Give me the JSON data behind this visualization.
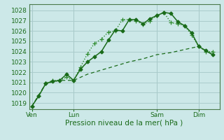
{
  "xlabel": "Pression niveau de la mer( hPa )",
  "background_color": "#cce8e8",
  "grid_color": "#aacccc",
  "line_color_dark": "#1a6b1a",
  "line_color_med": "#2d8b2d",
  "yticks": [
    1019,
    1020,
    1021,
    1022,
    1023,
    1024,
    1025,
    1026,
    1027,
    1028
  ],
  "ylim": [
    1018.4,
    1028.6
  ],
  "xtick_labels": [
    "Ven",
    "Lun",
    "Sam",
    "Dim"
  ],
  "xtick_positions": [
    0,
    3,
    9,
    12
  ],
  "xlim": [
    -0.2,
    13.5
  ],
  "series1_x": [
    0,
    0.5,
    1,
    1.5,
    2,
    2.5,
    3,
    3.5,
    4,
    4.5,
    5,
    5.5,
    6,
    6.5,
    7,
    7.5,
    8,
    8.5,
    9,
    9.5,
    10,
    10.5,
    11,
    11.5,
    12,
    12.5,
    13
  ],
  "series1_y": [
    1018.7,
    1019.7,
    1020.9,
    1021.1,
    1021.2,
    1021.8,
    1021.2,
    1022.3,
    1023.0,
    1023.5,
    1024.0,
    1025.1,
    1026.1,
    1026.0,
    1027.1,
    1027.1,
    1026.7,
    1027.2,
    1027.5,
    1027.8,
    1027.7,
    1026.9,
    1026.5,
    1025.8,
    1024.5,
    1024.1,
    1023.7
  ],
  "series2_x": [
    0,
    0.5,
    1,
    1.5,
    2,
    2.5,
    3,
    3.5,
    4,
    4.5,
    5,
    5.5,
    6,
    6.5,
    7,
    7.5,
    8,
    8.5,
    9,
    9.5,
    10,
    10.5,
    11,
    11.5,
    12,
    12.5,
    13
  ],
  "series2_y": [
    1018.7,
    1019.7,
    1020.9,
    1021.2,
    1021.2,
    1021.5,
    1021.2,
    1022.5,
    1023.8,
    1024.8,
    1025.2,
    1025.9,
    1026.0,
    1027.1,
    1027.1,
    1027.0,
    1026.6,
    1027.0,
    1027.5,
    1027.8,
    1026.8,
    1026.7,
    1026.5,
    1025.6,
    1024.5,
    1024.0,
    1024.0
  ],
  "series3_x": [
    0,
    1,
    2,
    3,
    4,
    5,
    6,
    7,
    8,
    9,
    10,
    11,
    12,
    13
  ],
  "series3_y": [
    1018.7,
    1020.9,
    1021.2,
    1021.2,
    1021.8,
    1022.2,
    1022.6,
    1023.0,
    1023.3,
    1023.7,
    1023.9,
    1024.2,
    1024.5,
    1023.7
  ],
  "vline_positions": [
    0,
    3,
    9,
    12
  ],
  "vline_color": "#4a7a4a",
  "tick_fontsize": 6.5,
  "xlabel_fontsize": 7.5
}
